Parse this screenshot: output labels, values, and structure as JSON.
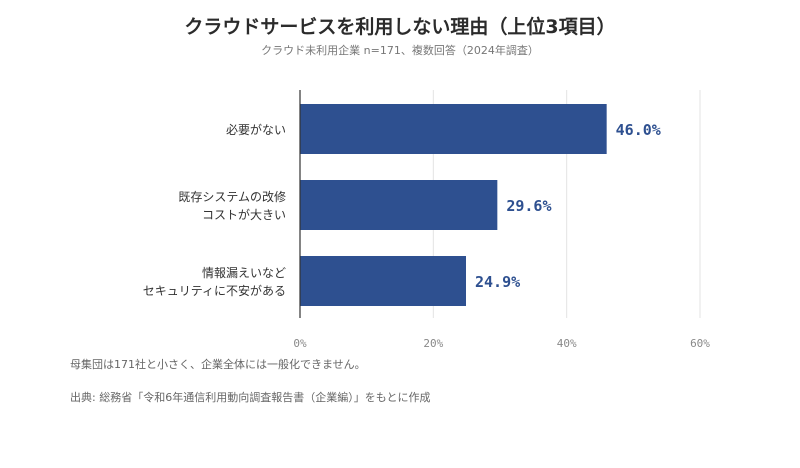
{
  "chart_data": {
    "type": "bar",
    "orientation": "horizontal",
    "title": "クラウドサービスを利用しない理由（上位3項目）",
    "subtitle": "クラウド未利用企業 n=171、複数回答（2024年調査）",
    "categories": [
      [
        "必要がない"
      ],
      [
        "既存システムの改修",
        "コストが大きい"
      ],
      [
        "情報漏えいなど",
        "セキュリティに不安がある"
      ]
    ],
    "values": [
      46.0,
      29.6,
      24.9
    ],
    "value_labels": [
      "46.0%",
      "29.6%",
      "24.9%"
    ],
    "xlim": [
      0,
      60
    ],
    "x_ticks": [
      0,
      20,
      40,
      60
    ],
    "x_tick_labels": [
      "0%",
      "20%",
      "40%",
      "60%"
    ],
    "grid": true,
    "bar_color": "#2e5090",
    "label_color": "#2e5090"
  },
  "notes": {
    "sample": "母集団は171社と小さく、企業全体には一般化できません。",
    "source": "出典: 総務省「令和6年通信利用動向調査報告書（企業編）」をもとに作成"
  }
}
